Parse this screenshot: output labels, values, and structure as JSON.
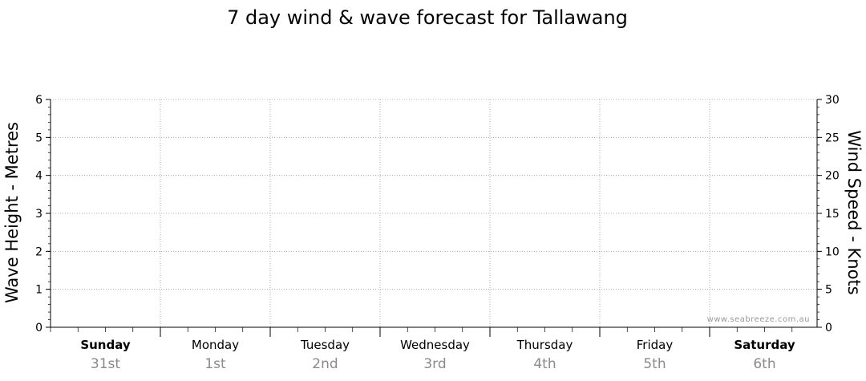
{
  "chart_data": {
    "type": "line",
    "title": "7 day wind & wave forecast for Tallawang",
    "ylabel": "Wave Height - Metres",
    "y2label": "Wind Speed - Knots",
    "ylim": [
      0,
      6
    ],
    "y2lim": [
      0,
      30
    ],
    "yticks": [
      "0",
      "1",
      "2",
      "3",
      "4",
      "5",
      "6"
    ],
    "y2ticks": [
      "0",
      "5",
      "10",
      "15",
      "20",
      "25",
      "30"
    ],
    "grid": true,
    "days": [
      {
        "day": "Sunday",
        "date": "31st",
        "bold": true
      },
      {
        "day": "Monday",
        "date": "1st",
        "bold": false
      },
      {
        "day": "Tuesday",
        "date": "2nd",
        "bold": false
      },
      {
        "day": "Wednesday",
        "date": "3rd",
        "bold": false
      },
      {
        "day": "Thursday",
        "date": "4th",
        "bold": false
      },
      {
        "day": "Friday",
        "date": "5th",
        "bold": false
      },
      {
        "day": "Saturday",
        "date": "6th",
        "bold": true
      }
    ],
    "series": [],
    "watermark": "www.seabreeze.com.au"
  }
}
